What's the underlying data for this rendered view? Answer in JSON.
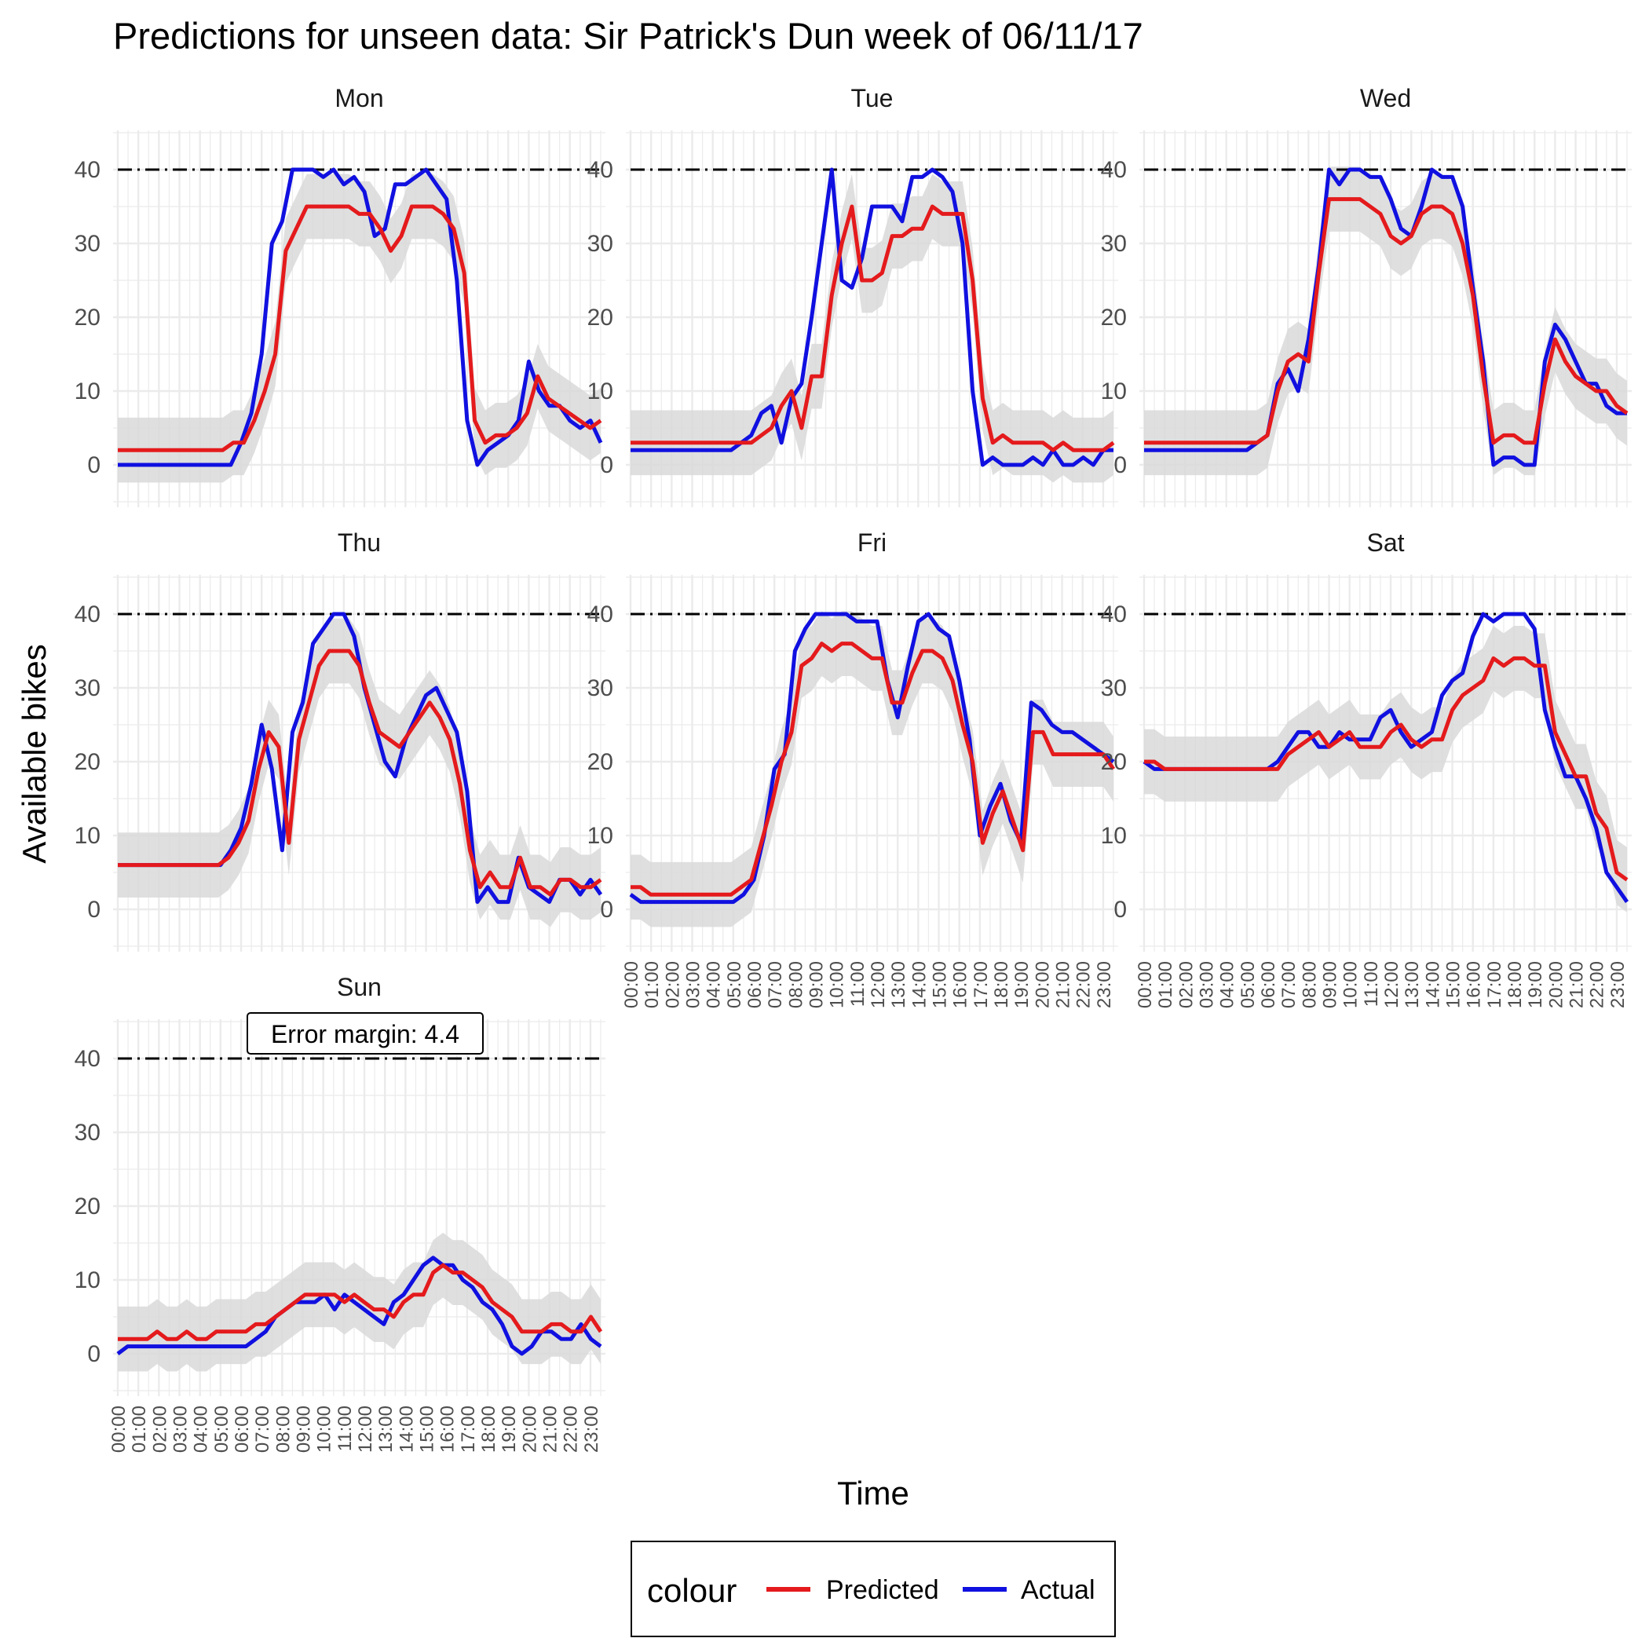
{
  "chart_data": {
    "type": "line",
    "title": "Predictions for unseen data: Sir Patrick's Dun week of 06/11/17",
    "xlabel": "Time",
    "ylabel": "Available bikes",
    "ylim": [
      0,
      40
    ],
    "y_ticks": [
      0,
      10,
      20,
      30,
      40
    ],
    "x_ticks": [
      "00:00",
      "01:00",
      "02:00",
      "03:00",
      "04:00",
      "05:00",
      "06:00",
      "07:00",
      "08:00",
      "09:00",
      "10:00",
      "11:00",
      "12:00",
      "13:00",
      "14:00",
      "15:00",
      "16:00",
      "17:00",
      "18:00",
      "19:00",
      "20:00",
      "21:00",
      "22:00",
      "23:00"
    ],
    "x_step_hours": 0.5,
    "capacity_line": 40,
    "error_margin": 4.4,
    "annotation": "Error margin: 4.4",
    "grid": true,
    "legend": {
      "title": "colour",
      "position": "bottom",
      "items": [
        {
          "label": "Predicted",
          "color": "#e41a1c"
        },
        {
          "label": "Actual",
          "color": "#1010e0"
        }
      ]
    },
    "colors": {
      "predicted": "#e41a1c",
      "actual": "#1010e0",
      "band": "#d9d9d9",
      "capacity": "#000000",
      "grid": "#ebebeb"
    },
    "panels": [
      {
        "label": "Mon",
        "predicted": [
          2,
          2,
          2,
          2,
          2,
          2,
          2,
          2,
          2,
          2,
          2,
          3,
          3,
          6,
          10,
          15,
          29,
          32,
          35,
          35,
          35,
          35,
          35,
          34,
          34,
          32,
          29,
          31,
          35,
          35,
          35,
          34,
          32,
          26,
          6,
          3,
          4,
          4,
          5,
          7,
          12,
          9,
          8,
          7,
          6,
          5,
          6
        ],
        "actual": [
          0,
          0,
          0,
          0,
          0,
          0,
          0,
          0,
          0,
          0,
          0,
          0,
          3,
          7,
          15,
          30,
          33,
          40,
          40,
          40,
          39,
          40,
          38,
          39,
          37,
          31,
          32,
          38,
          38,
          39,
          40,
          38,
          36,
          25,
          6,
          0,
          2,
          3,
          4,
          6,
          14,
          10,
          8,
          8,
          6,
          5,
          6,
          3
        ]
      },
      {
        "label": "Tue",
        "predicted": [
          3,
          3,
          3,
          3,
          3,
          3,
          3,
          3,
          3,
          3,
          3,
          3,
          3,
          4,
          5,
          8,
          10,
          5,
          12,
          12,
          23,
          30,
          35,
          25,
          25,
          26,
          31,
          31,
          32,
          32,
          35,
          34,
          34,
          34,
          25,
          9,
          3,
          4,
          3,
          3,
          3,
          3,
          2,
          3,
          2,
          2,
          2,
          2,
          3
        ],
        "actual": [
          2,
          2,
          2,
          2,
          2,
          2,
          2,
          2,
          2,
          2,
          2,
          3,
          4,
          7,
          8,
          3,
          9,
          11,
          20,
          30,
          40,
          25,
          24,
          28,
          35,
          35,
          35,
          33,
          39,
          39,
          40,
          39,
          37,
          30,
          10,
          0,
          1,
          0,
          0,
          0,
          1,
          0,
          2,
          0,
          0,
          1,
          0,
          2,
          2
        ]
      },
      {
        "label": "Wed",
        "predicted": [
          3,
          3,
          3,
          3,
          3,
          3,
          3,
          3,
          3,
          3,
          3,
          3,
          4,
          10,
          14,
          15,
          14,
          26,
          36,
          36,
          36,
          36,
          35,
          34,
          31,
          30,
          31,
          34,
          35,
          35,
          34,
          30,
          23,
          12,
          3,
          4,
          4,
          3,
          3,
          11,
          17,
          14,
          12,
          11,
          10,
          10,
          8,
          7
        ],
        "actual": [
          2,
          2,
          2,
          2,
          2,
          2,
          2,
          2,
          2,
          2,
          2,
          3,
          4,
          11,
          13,
          10,
          17,
          27,
          40,
          38,
          40,
          40,
          39,
          39,
          36,
          32,
          31,
          35,
          40,
          39,
          39,
          35,
          24,
          14,
          0,
          1,
          1,
          0,
          0,
          14,
          19,
          17,
          14,
          11,
          11,
          8,
          7,
          7
        ]
      },
      {
        "label": "Thu",
        "predicted": [
          6,
          6,
          6,
          6,
          6,
          6,
          6,
          6,
          6,
          6,
          6,
          7,
          9,
          12,
          19,
          24,
          22,
          9,
          23,
          28,
          33,
          35,
          35,
          35,
          33,
          28,
          24,
          23,
          22,
          24,
          26,
          28,
          26,
          23,
          17,
          8,
          3,
          5,
          3,
          3,
          7,
          3,
          3,
          2,
          4,
          4,
          3,
          3,
          4
        ],
        "actual": [
          6,
          6,
          6,
          6,
          6,
          6,
          6,
          6,
          6,
          6,
          6,
          8,
          11,
          17,
          25,
          19,
          8,
          24,
          28,
          36,
          38,
          40,
          40,
          37,
          30,
          25,
          20,
          18,
          23,
          26,
          29,
          30,
          27,
          24,
          16,
          1,
          3,
          1,
          1,
          7,
          3,
          2,
          1,
          4,
          4,
          2,
          4,
          2
        ]
      },
      {
        "label": "Fri",
        "predicted": [
          3,
          3,
          2,
          2,
          2,
          2,
          2,
          2,
          2,
          2,
          2,
          3,
          4,
          9,
          14,
          20,
          24,
          33,
          34,
          36,
          35,
          36,
          36,
          35,
          34,
          34,
          28,
          28,
          32,
          35,
          35,
          34,
          31,
          25,
          20,
          9,
          13,
          16,
          12,
          8,
          24,
          24,
          21,
          21,
          21,
          21,
          21,
          21,
          19
        ],
        "actual": [
          2,
          1,
          1,
          1,
          1,
          1,
          1,
          1,
          1,
          1,
          1,
          2,
          4,
          10,
          19,
          21,
          35,
          38,
          40,
          40,
          40,
          40,
          39,
          39,
          39,
          31,
          26,
          33,
          39,
          40,
          38,
          37,
          31,
          23,
          10,
          14,
          17,
          12,
          9,
          28,
          27,
          25,
          24,
          24,
          23,
          22,
          21,
          20
        ]
      },
      {
        "label": "Sat",
        "predicted": [
          20,
          20,
          19,
          19,
          19,
          19,
          19,
          19,
          19,
          19,
          19,
          19,
          19,
          19,
          21,
          22,
          23,
          24,
          22,
          23,
          24,
          22,
          22,
          22,
          24,
          25,
          23,
          22,
          23,
          23,
          27,
          29,
          30,
          31,
          34,
          33,
          34,
          34,
          33,
          33,
          24,
          21,
          18,
          18,
          13,
          11,
          5,
          4
        ],
        "actual": [
          20,
          19,
          19,
          19,
          19,
          19,
          19,
          19,
          19,
          19,
          19,
          19,
          19,
          20,
          22,
          24,
          24,
          22,
          22,
          24,
          23,
          23,
          23,
          26,
          27,
          24,
          22,
          23,
          24,
          29,
          31,
          32,
          37,
          40,
          39,
          40,
          40,
          40,
          38,
          27,
          22,
          18,
          18,
          15,
          11,
          5,
          3,
          1
        ]
      },
      {
        "label": "Sun",
        "predicted": [
          2,
          2,
          2,
          2,
          3,
          2,
          2,
          3,
          2,
          2,
          3,
          3,
          3,
          3,
          4,
          4,
          5,
          6,
          7,
          8,
          8,
          8,
          8,
          7,
          8,
          7,
          6,
          6,
          5,
          7,
          8,
          8,
          11,
          12,
          11,
          11,
          10,
          9,
          7,
          6,
          5,
          3,
          3,
          3,
          4,
          4,
          3,
          3,
          5,
          3
        ],
        "actual": [
          0,
          1,
          1,
          1,
          1,
          1,
          1,
          1,
          1,
          1,
          1,
          1,
          1,
          1,
          2,
          3,
          5,
          6,
          7,
          7,
          7,
          8,
          6,
          8,
          7,
          6,
          5,
          4,
          7,
          8,
          10,
          12,
          13,
          12,
          12,
          10,
          9,
          7,
          6,
          4,
          1,
          0,
          1,
          3,
          3,
          2,
          2,
          4,
          2,
          1
        ]
      }
    ]
  }
}
